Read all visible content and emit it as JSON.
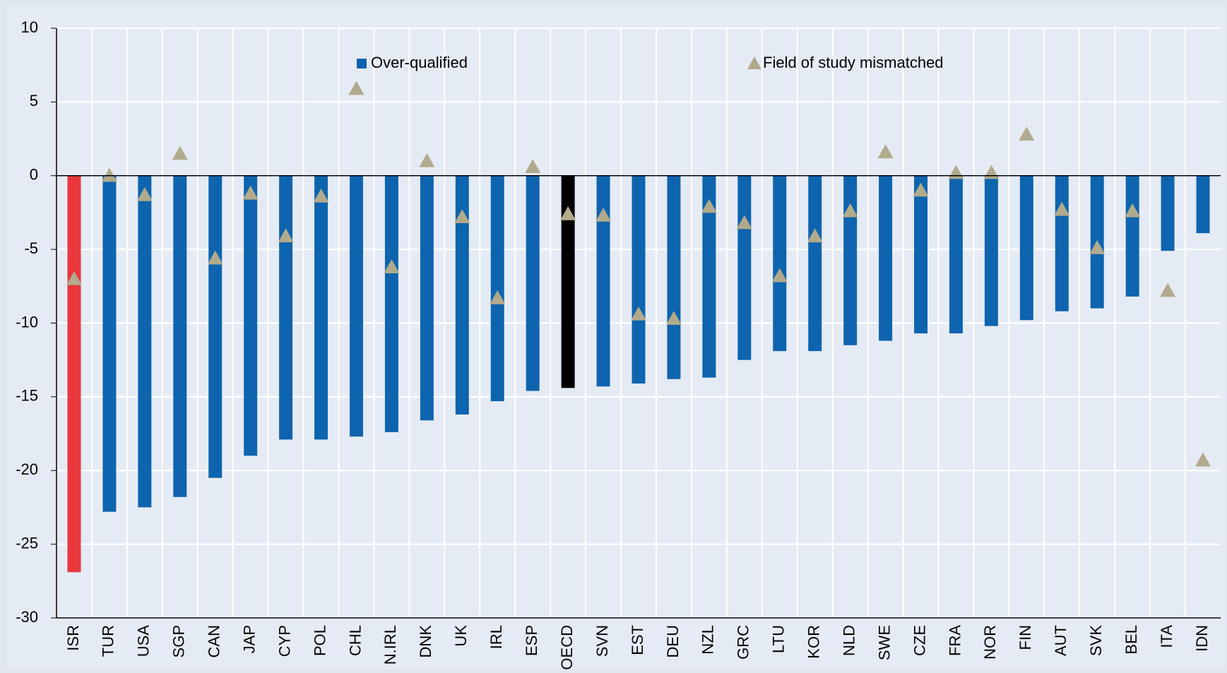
{
  "chart_data": {
    "type": "bar",
    "categories": [
      "ISR",
      "TUR",
      "USA",
      "SGP",
      "CAN",
      "JAP",
      "CYP",
      "POL",
      "CHL",
      "N.IRL",
      "DNK",
      "UK",
      "IRL",
      "ESP",
      "OECD",
      "SVN",
      "EST",
      "DEU",
      "NZL",
      "GRC",
      "LTU",
      "KOR",
      "NLD",
      "SWE",
      "CZE",
      "FRA",
      "NOR",
      "FIN",
      "AUT",
      "SVK",
      "BEL",
      "ITA",
      "IDN"
    ],
    "series": [
      {
        "name": "Over-qualified",
        "type": "bar",
        "color": "#0e64ae",
        "colors": [
          "#e8383d",
          "#0e64ae",
          "#0e64ae",
          "#0e64ae",
          "#0e64ae",
          "#0e64ae",
          "#0e64ae",
          "#0e64ae",
          "#0e64ae",
          "#0e64ae",
          "#0e64ae",
          "#0e64ae",
          "#0e64ae",
          "#0e64ae",
          "#000000",
          "#0e64ae",
          "#0e64ae",
          "#0e64ae",
          "#0e64ae",
          "#0e64ae",
          "#0e64ae",
          "#0e64ae",
          "#0e64ae",
          "#0e64ae",
          "#0e64ae",
          "#0e64ae",
          "#0e64ae",
          "#0e64ae",
          "#0e64ae",
          "#0e64ae",
          "#0e64ae",
          "#0e64ae",
          "#0e64ae"
        ],
        "values": [
          -26.9,
          -22.8,
          -22.5,
          -21.8,
          -20.5,
          -19.0,
          -17.9,
          -17.9,
          -17.7,
          -17.4,
          -16.6,
          -16.2,
          -15.3,
          -14.6,
          -14.4,
          -14.3,
          -14.1,
          -13.8,
          -13.7,
          -12.5,
          -11.9,
          -11.9,
          -11.5,
          -11.2,
          -10.7,
          -10.7,
          -10.2,
          -9.8,
          -9.2,
          -9.0,
          -8.2,
          -5.1,
          -3.9
        ]
      },
      {
        "name": "Field of study mismatched",
        "type": "triangle",
        "color": "#b1aa8c",
        "values": [
          -7.0,
          0.0,
          -1.3,
          1.5,
          -5.6,
          -1.2,
          -4.1,
          -1.4,
          5.9,
          -6.2,
          1.0,
          -2.8,
          -8.3,
          0.6,
          -2.6,
          -2.7,
          -9.4,
          -9.7,
          -2.1,
          -3.2,
          -6.8,
          -4.1,
          -2.4,
          1.6,
          -1.0,
          0.2,
          0.2,
          2.8,
          -2.3,
          -4.9,
          -2.4,
          -7.8,
          -19.3
        ]
      }
    ],
    "ylim": [
      -30,
      10
    ],
    "yticks": [
      -30,
      -25,
      -20,
      -15,
      -10,
      -5,
      0,
      5,
      10
    ],
    "grid": true
  }
}
